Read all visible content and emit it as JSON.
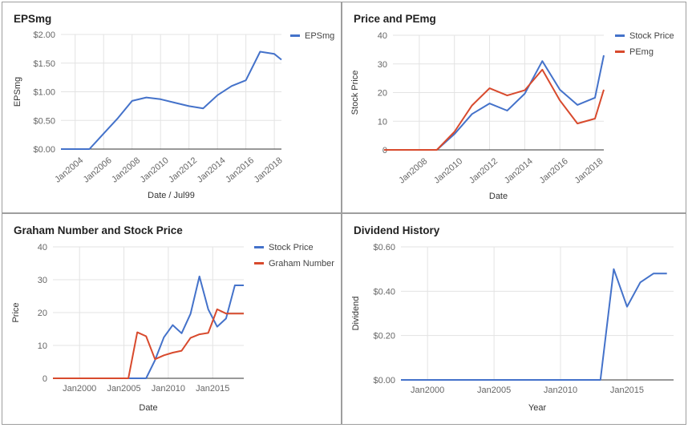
{
  "chart_data": [
    {
      "id": "eps",
      "type": "line",
      "title": "EPSmg",
      "xlabel": "Date / Jul99",
      "ylabel": "EPSmg",
      "x": [
        2003,
        2004,
        2005,
        2006,
        2007,
        2008,
        2009,
        2010,
        2011,
        2012,
        2013,
        2014,
        2015,
        2016,
        2017,
        2018,
        2018.5
      ],
      "xlim": [
        2003,
        2018.5
      ],
      "ylim": [
        0,
        2
      ],
      "xticks": [
        2004,
        2006,
        2008,
        2010,
        2012,
        2014,
        2016,
        2018
      ],
      "xtick_labels": [
        "Jan2004",
        "Jan2006",
        "Jan2008",
        "Jan2010",
        "Jan2012",
        "Jan2014",
        "Jan2016",
        "Jan2018"
      ],
      "yticks": [
        0,
        0.5,
        1,
        1.5,
        2
      ],
      "ytick_labels": [
        "$0.00",
        "$0.50",
        "$1.00",
        "$1.50",
        "$2.00"
      ],
      "grid": true,
      "legend": "top-right",
      "series": [
        {
          "name": "EPSmg",
          "color": "#4472ca",
          "values": [
            0,
            0,
            0,
            0.27,
            0.54,
            0.84,
            0.9,
            0.87,
            0.81,
            0.75,
            0.71,
            0.94,
            1.1,
            1.2,
            1.7,
            1.66,
            1.56
          ]
        }
      ]
    },
    {
      "id": "pe",
      "type": "line",
      "title": "Price and PEmg",
      "xlabel": "Date",
      "ylabel": "Stock Price",
      "x": [
        2006,
        2007,
        2008,
        2009,
        2010,
        2011,
        2012,
        2013,
        2014,
        2015,
        2016,
        2017,
        2018,
        2018.5
      ],
      "xlim": [
        2006.5,
        2018.5
      ],
      "ylim": [
        0,
        40
      ],
      "xticks": [
        2008,
        2010,
        2012,
        2014,
        2016,
        2018
      ],
      "xtick_labels": [
        "Jan2008",
        "Jan2010",
        "Jan2012",
        "Jan2014",
        "Jan2016",
        "Jan2018"
      ],
      "yticks": [
        0,
        10,
        20,
        30,
        40
      ],
      "ytick_labels": [
        "0",
        "10",
        "20",
        "30",
        "40"
      ],
      "grid": true,
      "legend": "top-right",
      "series": [
        {
          "name": "Stock Price",
          "color": "#4472ca",
          "values": [
            0,
            0,
            0,
            0,
            5.5,
            12.5,
            16.2,
            13.7,
            19.6,
            31,
            21,
            15.7,
            18.2,
            33
          ]
        },
        {
          "name": "PEmg",
          "color": "#d84a2d",
          "values": [
            0,
            0,
            0,
            0,
            6.3,
            15.5,
            21.5,
            19,
            20.8,
            28,
            17.3,
            9.2,
            10.9,
            21
          ]
        }
      ]
    },
    {
      "id": "graham",
      "type": "line",
      "title": "Graham Number and Stock Price",
      "xlabel": "Date",
      "ylabel": "Price",
      "x": [
        1997,
        1998,
        1999,
        2000,
        2001,
        2002,
        2003,
        2004,
        2005,
        2006,
        2007,
        2008,
        2009,
        2010,
        2011,
        2012,
        2013,
        2014,
        2015,
        2016,
        2017,
        2018
      ],
      "xlim": [
        1997,
        2018.5
      ],
      "ylim": [
        0,
        40
      ],
      "xticks": [
        2000,
        2005,
        2010,
        2015
      ],
      "xtick_labels": [
        "Jan2000",
        "Jan2005",
        "Jan2010",
        "Jan2015"
      ],
      "yticks": [
        0,
        10,
        20,
        30,
        40
      ],
      "ytick_labels": [
        "0",
        "10",
        "20",
        "30",
        "40"
      ],
      "grid": true,
      "legend": "top-right",
      "series": [
        {
          "name": "Stock Price",
          "color": "#4472ca",
          "x": [
            1997,
            2007.5,
            2008.5,
            2009.5,
            2010.5,
            2011.5,
            2012.5,
            2013.5,
            2014.5,
            2015.5,
            2016.5,
            2017.5,
            2018.5
          ],
          "values": [
            0,
            0,
            5.5,
            12.5,
            16.2,
            13.7,
            19.6,
            31,
            21,
            15.7,
            18.2,
            28.3,
            28.3
          ]
        },
        {
          "name": "Graham Number",
          "color": "#d84a2d",
          "x": [
            1997,
            2005.5,
            2006.5,
            2007.5,
            2008.5,
            2009.5,
            2010.5,
            2011.5,
            2012.5,
            2013.5,
            2014.5,
            2015.5,
            2016.5,
            2017.5,
            2018.5
          ],
          "values": [
            0,
            0,
            14,
            12.8,
            5.8,
            7,
            7.8,
            8.4,
            12.3,
            13.4,
            13.8,
            21,
            19.7,
            19.7,
            19.7
          ]
        }
      ]
    },
    {
      "id": "dividend",
      "type": "line",
      "title": "Dividend History",
      "xlabel": "Year",
      "ylabel": "Dividend",
      "xlim": [
        1998,
        2018.5
      ],
      "ylim": [
        0,
        0.6
      ],
      "xticks": [
        2000,
        2005,
        2010,
        2015
      ],
      "xtick_labels": [
        "Jan2000",
        "Jan2005",
        "Jan2010",
        "Jan2015"
      ],
      "yticks": [
        0,
        0.2,
        0.4,
        0.6
      ],
      "ytick_labels": [
        "$0.00",
        "$0.20",
        "$0.40",
        "$0.60"
      ],
      "grid": true,
      "legend": "none",
      "series": [
        {
          "name": "",
          "color": "#4472ca",
          "x": [
            1998,
            2013,
            2014,
            2015,
            2016,
            2017,
            2018
          ],
          "values": [
            0,
            0,
            0.5,
            0.33,
            0.44,
            0.48,
            0.48
          ]
        }
      ]
    }
  ]
}
